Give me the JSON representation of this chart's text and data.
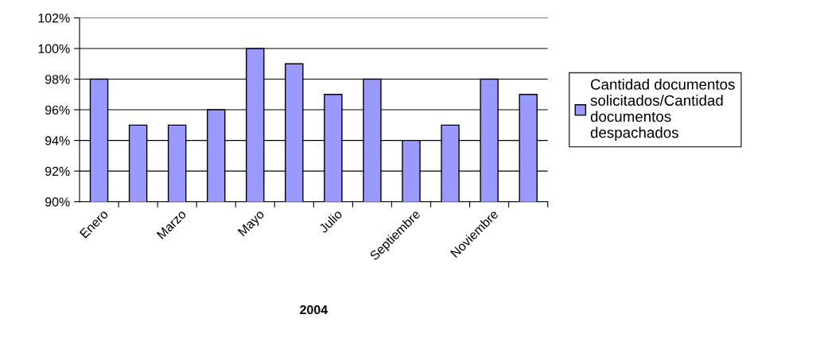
{
  "chart_data": {
    "type": "bar",
    "xlabel": "2004",
    "categories": [
      "Enero",
      null,
      "Marzo",
      null,
      "Mayo",
      null,
      "Julio",
      null,
      "Septiembre",
      null,
      "Noviembre",
      null
    ],
    "series": [
      {
        "name": "Cantidad documentos solicitados/Cantidad documentos despachados",
        "color": "#9999ff",
        "values": [
          98,
          95,
          95,
          96,
          100,
          99,
          97,
          98,
          94,
          95,
          98,
          97
        ]
      }
    ],
    "ylim": [
      90,
      102
    ],
    "yticks": [
      {
        "value": 90,
        "label": "90%"
      },
      {
        "value": 92,
        "label": "92%"
      },
      {
        "value": 94,
        "label": "94%"
      },
      {
        "value": 96,
        "label": "96%"
      },
      {
        "value": 98,
        "label": "98%"
      },
      {
        "value": 100,
        "label": "100%"
      },
      {
        "value": 102,
        "label": "102%"
      }
    ],
    "grid": "y",
    "legend": "right"
  }
}
